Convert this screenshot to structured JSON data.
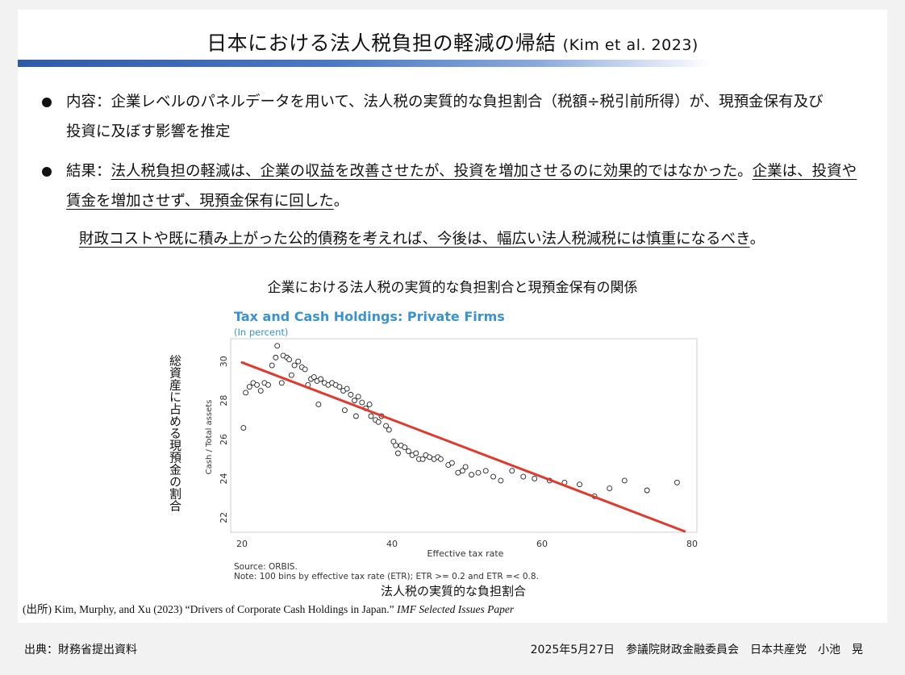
{
  "slide": {
    "title": "日本における法人税負担の軽減の帰結",
    "title_cite": "(Kim et al. 2023)",
    "bullet1": {
      "line1": "内容：企業レベルのパネルデータを用いて、法人税の実質的な負担割合（税額÷税引前所得）が、現預金保有及び",
      "line2": "投資に及ぼす影響を推定"
    },
    "bullet2": {
      "label": "結果：",
      "part1": "法人税負担の軽減は、企業の収益を改善させたが、投資を増加させるのに効果的ではなかった",
      "sep": "。",
      "part2_line1": "企業は、投資や",
      "part2_line2": "賃金を増加させず、現預金保有に回した",
      "end": "。"
    },
    "note": {
      "underlined": "財政コストや既に積み上がった公的債務を考えれば、今後は、幅広い法人税減税には慎重になるべき",
      "end": "。"
    },
    "chart_caption": "企業における法人税の実質的な負担割合と現預金保有の関係",
    "source_prefix": "(出所) Kim, Murphy, and Xu (2023) “Drivers of Corporate Cash Holdings in Japan.”",
    "source_italic": "IMF Selected Issues Paper"
  },
  "footer": {
    "left": "出典：財務省提出資料",
    "right": "2025年5月27日　参議院財政金融委員会　日本共産党　小池　晃"
  },
  "chart_data": {
    "type": "scatter",
    "title": "Tax and Cash Holdings: Private Firms",
    "subtitle": "(In percent)",
    "xlabel": "Effective tax rate",
    "ylabel": "Cash / Total assets",
    "ylabel_ja": "総資産に占める現預金の割合",
    "xlabel_ja": "法人税の実質的な負担割合",
    "xlim": [
      20,
      80
    ],
    "ylim": [
      21.5,
      31
    ],
    "xticks": [
      20,
      40,
      60,
      80
    ],
    "yticks": [
      22,
      24,
      26,
      28,
      30
    ],
    "source": "Source: ORBIS.",
    "note": "Note: 100 bins by effective tax rate (ETR); ETR >= 0.2 and ETR =< 0.8.",
    "trendline": {
      "x": [
        20,
        79
      ],
      "y": [
        29.95,
        21.3
      ],
      "color": "#e03a2e"
    },
    "points": [
      [
        20.2,
        26.6
      ],
      [
        20.5,
        28.4
      ],
      [
        21,
        28.7
      ],
      [
        21.5,
        28.9
      ],
      [
        22,
        28.8
      ],
      [
        22.5,
        28.5
      ],
      [
        23,
        28.9
      ],
      [
        23.5,
        28.8
      ],
      [
        24,
        29.8
      ],
      [
        24.5,
        30.2
      ],
      [
        24.7,
        30.8
      ],
      [
        25.3,
        28.9
      ],
      [
        25.5,
        30.3
      ],
      [
        26,
        30.2
      ],
      [
        26.3,
        30.1
      ],
      [
        26.6,
        29.3
      ],
      [
        27,
        29.8
      ],
      [
        27.5,
        30.0
      ],
      [
        28,
        29.7
      ],
      [
        28.4,
        29.6
      ],
      [
        28.8,
        28.8
      ],
      [
        29.2,
        29.1
      ],
      [
        29.6,
        29.2
      ],
      [
        30,
        29.0
      ],
      [
        30.2,
        27.8
      ],
      [
        30.5,
        29.1
      ],
      [
        31,
        28.9
      ],
      [
        31.5,
        28.8
      ],
      [
        32,
        28.9
      ],
      [
        32.5,
        28.8
      ],
      [
        33,
        28.7
      ],
      [
        33.5,
        28.5
      ],
      [
        33.7,
        27.5
      ],
      [
        34,
        28.6
      ],
      [
        34.5,
        28.3
      ],
      [
        35,
        28.0
      ],
      [
        35.5,
        28.2
      ],
      [
        35.2,
        27.2
      ],
      [
        36,
        27.9
      ],
      [
        36.5,
        27.6
      ],
      [
        37,
        27.8
      ],
      [
        37.2,
        27.2
      ],
      [
        37.8,
        27.0
      ],
      [
        38.2,
        26.9
      ],
      [
        38.6,
        27.2
      ],
      [
        39.2,
        26.7
      ],
      [
        39.6,
        26.5
      ],
      [
        40.2,
        25.9
      ],
      [
        40.5,
        25.7
      ],
      [
        40.8,
        25.3
      ],
      [
        41.2,
        25.7
      ],
      [
        41.7,
        25.6
      ],
      [
        42.2,
        25.4
      ],
      [
        42.7,
        25.2
      ],
      [
        43.2,
        25.3
      ],
      [
        43.6,
        25.0
      ],
      [
        44.1,
        25.0
      ],
      [
        44.5,
        25.2
      ],
      [
        45,
        25.1
      ],
      [
        45.6,
        25.0
      ],
      [
        46.1,
        25.1
      ],
      [
        46.5,
        25.0
      ],
      [
        47.5,
        24.7
      ],
      [
        48,
        24.8
      ],
      [
        48.8,
        24.3
      ],
      [
        49.4,
        24.4
      ],
      [
        49.8,
        24.6
      ],
      [
        50.6,
        24.2
      ],
      [
        51.5,
        24.3
      ],
      [
        52.5,
        24.4
      ],
      [
        53.5,
        24.1
      ],
      [
        54.5,
        23.9
      ],
      [
        56,
        24.4
      ],
      [
        57.5,
        24.1
      ],
      [
        59,
        24.0
      ],
      [
        61,
        23.9
      ],
      [
        63,
        23.8
      ],
      [
        65,
        23.7
      ],
      [
        67,
        23.1
      ],
      [
        69,
        23.5
      ],
      [
        71,
        23.9
      ],
      [
        74,
        23.4
      ],
      [
        78,
        23.8
      ]
    ]
  }
}
